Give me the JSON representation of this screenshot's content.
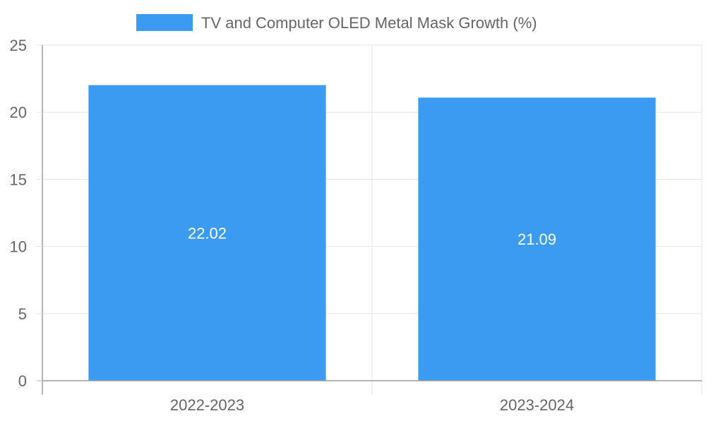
{
  "chart_data": {
    "type": "bar",
    "categories": [
      "2022-2023",
      "2023-2024"
    ],
    "series": [
      {
        "name": "TV and Computer OLED Metal Mask Growth (%)",
        "values": [
          22.02,
          21.09
        ],
        "value_labels": [
          "22.02",
          "21.09"
        ],
        "color": "#3a9bf0"
      }
    ],
    "title": "",
    "xlabel": "",
    "ylabel": "",
    "ylim": [
      0,
      25
    ],
    "yticks": [
      0,
      5,
      10,
      15,
      20,
      25
    ],
    "ytick_labels": [
      "0",
      "5",
      "10",
      "15",
      "20",
      "25"
    ],
    "grid": true,
    "legend": "top-center"
  },
  "colors": {
    "grid": "#e5e5e5",
    "axis": "#9e9e9e",
    "text": "#666666",
    "bar_label": "#ffffff"
  }
}
